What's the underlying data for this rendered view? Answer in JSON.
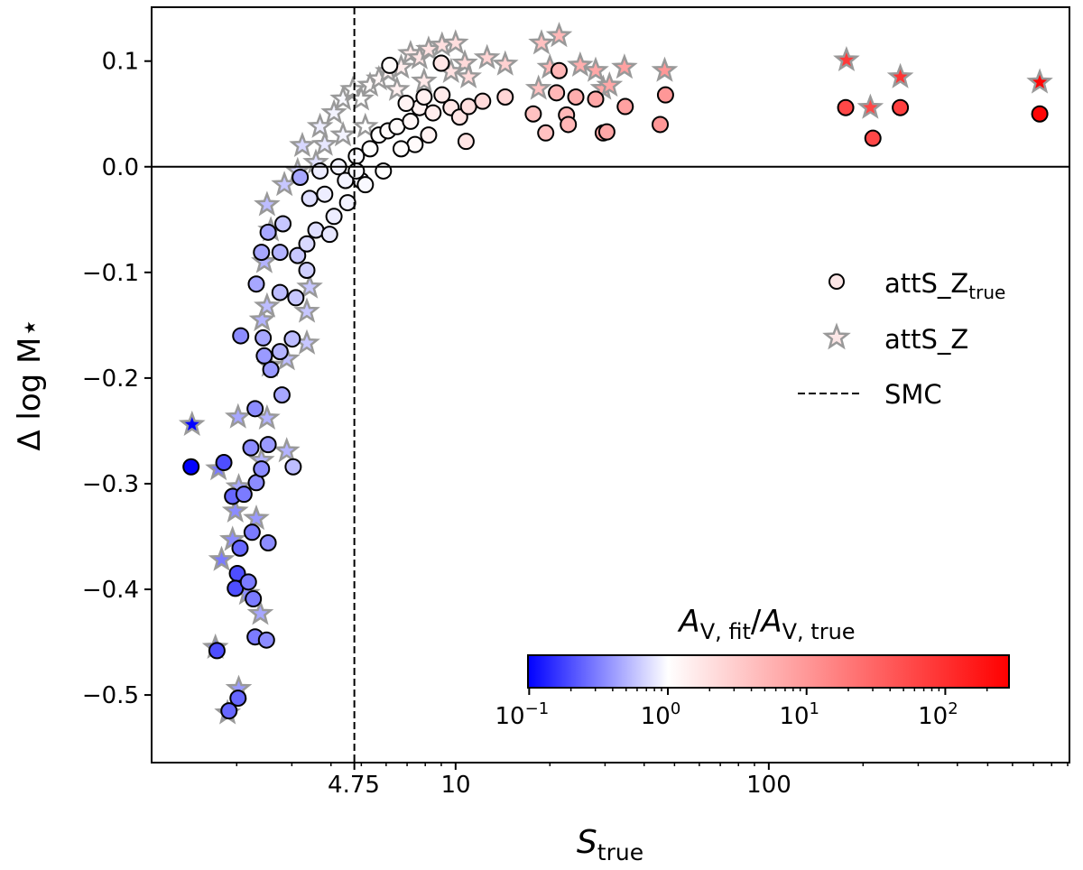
{
  "chart_data": {
    "type": "scatter",
    "xlabel": "S",
    "xlabel_sub": "true",
    "ylabel": "Δ log M⋆",
    "x_scale": "log",
    "xlim": [
      1.07,
      912
    ],
    "ylim": [
      -0.564,
      0.151
    ],
    "x_ticks": [
      {
        "value": 4.75,
        "label": "4.75"
      },
      {
        "value": 10,
        "label": "10"
      },
      {
        "value": 100,
        "label": "100"
      }
    ],
    "y_ticks": [
      {
        "value": -0.5,
        "label": "−0.5"
      },
      {
        "value": -0.4,
        "label": "−0.4"
      },
      {
        "value": -0.3,
        "label": "−0.3"
      },
      {
        "value": -0.2,
        "label": "−0.2"
      },
      {
        "value": -0.1,
        "label": "−0.1"
      },
      {
        "value": 0.0,
        "label": "0.0"
      },
      {
        "value": 0.1,
        "label": "0.1"
      }
    ],
    "grid": false,
    "reference_lines": [
      {
        "orientation": "horizontal",
        "value": 0.0,
        "style": "solid"
      },
      {
        "orientation": "vertical",
        "value": 4.75,
        "style": "dashed",
        "name": "SMC"
      }
    ],
    "legend": {
      "placement": "right",
      "entries": [
        {
          "label": "attS_Z",
          "label_sub": "true",
          "marker": "circle"
        },
        {
          "label": "attS_Z",
          "marker": "star"
        },
        {
          "label": "SMC",
          "marker": "dashed-line"
        }
      ]
    },
    "colorbar": {
      "label": "A",
      "label_parts": [
        "A",
        "V, fit",
        "/",
        "A",
        "V, true"
      ],
      "scale": "log",
      "range": [
        0.098,
        288
      ],
      "center": 1,
      "colormap": "bwr",
      "colors": {
        "low": "#0000ff",
        "center": "#ffffff",
        "high": "#ff0000"
      },
      "ticks": [
        {
          "value": 0.1,
          "base": "10",
          "exp": "−1"
        },
        {
          "value": 1,
          "base": "10",
          "exp": "0"
        },
        {
          "value": 10,
          "base": "10",
          "exp": "1"
        },
        {
          "value": 100,
          "base": "10",
          "exp": "2"
        }
      ]
    },
    "columns": [
      "S_true",
      "delta_log_M",
      "Av_ratio"
    ],
    "series": [
      {
        "name": "attS_Z_true",
        "marker": "circle",
        "edge_color": "#000000",
        "points": [
          [
            1.43,
            -0.284,
            0.1
          ],
          [
            1.82,
            -0.28,
            0.2
          ],
          [
            1.73,
            -0.458,
            0.2
          ],
          [
            1.89,
            -0.515,
            0.25
          ],
          [
            2.02,
            -0.503,
            0.25
          ],
          [
            1.94,
            -0.312,
            0.25
          ],
          [
            2.05,
            -0.361,
            0.25
          ],
          [
            2.01,
            -0.385,
            0.2
          ],
          [
            1.98,
            -0.399,
            0.2
          ],
          [
            2.18,
            -0.393,
            0.3
          ],
          [
            2.26,
            -0.409,
            0.3
          ],
          [
            2.29,
            -0.445,
            0.3
          ],
          [
            2.49,
            -0.448,
            0.35
          ],
          [
            2.52,
            -0.356,
            0.35
          ],
          [
            2.24,
            -0.346,
            0.3
          ],
          [
            2.11,
            -0.31,
            0.3
          ],
          [
            2.31,
            -0.299,
            0.35
          ],
          [
            2.4,
            -0.286,
            0.35
          ],
          [
            2.22,
            -0.266,
            0.35
          ],
          [
            2.52,
            -0.263,
            0.4
          ],
          [
            2.29,
            -0.229,
            0.35
          ],
          [
            2.79,
            -0.216,
            0.45
          ],
          [
            2.57,
            -0.192,
            0.4
          ],
          [
            2.45,
            -0.179,
            0.4
          ],
          [
            2.06,
            -0.16,
            0.35
          ],
          [
            2.43,
            -0.162,
            0.45
          ],
          [
            3.01,
            -0.163,
            0.55
          ],
          [
            2.75,
            -0.175,
            0.5
          ],
          [
            3.03,
            -0.284,
            0.55
          ],
          [
            2.75,
            -0.081,
            0.5
          ],
          [
            3.13,
            -0.084,
            0.6
          ],
          [
            2.4,
            -0.081,
            0.45
          ],
          [
            2.75,
            -0.119,
            0.55
          ],
          [
            2.31,
            -0.111,
            0.45
          ],
          [
            3.09,
            -0.124,
            0.6
          ],
          [
            3.35,
            -0.098,
            0.65
          ],
          [
            2.81,
            -0.054,
            0.6
          ],
          [
            3.35,
            -0.073,
            0.7
          ],
          [
            3.58,
            -0.06,
            0.75
          ],
          [
            3.42,
            -0.03,
            0.75
          ],
          [
            3.82,
            -0.026,
            0.85
          ],
          [
            3.69,
            -0.004,
            0.85
          ],
          [
            4.23,
            0.0,
            0.9
          ],
          [
            4.45,
            -0.013,
            0.9
          ],
          [
            4.09,
            -0.047,
            0.85
          ],
          [
            4.82,
            0.01,
            0.95
          ],
          [
            4.99,
            -0.013,
            0.95
          ],
          [
            5.33,
            0.017,
            1.0
          ],
          [
            5.69,
            0.03,
            1.0
          ],
          [
            6.08,
            0.034,
            1.1
          ],
          [
            5.88,
            -0.004,
            1.0
          ],
          [
            6.5,
            0.038,
            1.1
          ],
          [
            7.18,
            0.043,
            1.2
          ],
          [
            7.67,
            0.056,
            1.3
          ],
          [
            7.93,
            0.066,
            1.4
          ],
          [
            8.47,
            0.051,
            1.5
          ],
          [
            9.05,
            0.068,
            1.6
          ],
          [
            9.67,
            0.056,
            1.7
          ],
          [
            10.3,
            0.047,
            1.8
          ],
          [
            10.8,
            0.024,
            1.8
          ],
          [
            11.0,
            0.057,
            2.0
          ],
          [
            12.2,
            0.062,
            2.2
          ],
          [
            14.4,
            0.066,
            2.5
          ],
          [
            6.16,
            0.096,
            1.1
          ],
          [
            9.0,
            0.098,
            1.8
          ],
          [
            7.42,
            0.021,
            1.1
          ],
          [
            4.82,
            -0.004,
            0.95
          ],
          [
            5.15,
            -0.017,
            0.95
          ],
          [
            6.95,
            0.06,
            1.3
          ],
          [
            8.2,
            0.03,
            1.3
          ],
          [
            6.7,
            0.017,
            1.05
          ],
          [
            4.52,
            -0.034,
            0.9
          ],
          [
            3.96,
            -0.064,
            0.8
          ],
          [
            3.19,
            -0.01,
            0.45
          ],
          [
            2.52,
            -0.062,
            0.45
          ],
          [
            17.7,
            0.05,
            4
          ],
          [
            19.4,
            0.032,
            4
          ],
          [
            21.0,
            0.07,
            5
          ],
          [
            21.4,
            0.091,
            5
          ],
          [
            22.6,
            0.049,
            5
          ],
          [
            22.9,
            0.04,
            5
          ],
          [
            24.2,
            0.066,
            6
          ],
          [
            28.0,
            0.064,
            7
          ],
          [
            29.6,
            0.032,
            7
          ],
          [
            30.4,
            0.033,
            7
          ],
          [
            34.8,
            0.057,
            8
          ],
          [
            45.0,
            0.04,
            10
          ],
          [
            46.8,
            0.068,
            10
          ],
          [
            176,
            0.056,
            60
          ],
          [
            215,
            0.027,
            60
          ],
          [
            263,
            0.056,
            70
          ],
          [
            733,
            0.05,
            250
          ]
        ]
      },
      {
        "name": "attS_Z",
        "marker": "star",
        "edge_color": "#999999",
        "points": [
          [
            1.44,
            -0.244,
            0.1
          ],
          [
            1.71,
            -0.455,
            0.3
          ],
          [
            1.87,
            -0.517,
            0.35
          ],
          [
            2.03,
            -0.494,
            0.4
          ],
          [
            1.79,
            -0.372,
            0.3
          ],
          [
            1.94,
            -0.353,
            0.35
          ],
          [
            1.98,
            -0.326,
            0.35
          ],
          [
            2.31,
            -0.333,
            0.4
          ],
          [
            2.38,
            -0.423,
            0.45
          ],
          [
            2.16,
            -0.404,
            0.35
          ],
          [
            1.75,
            -0.286,
            0.3
          ],
          [
            2.03,
            -0.303,
            0.45
          ],
          [
            2.4,
            -0.278,
            0.5
          ],
          [
            2.89,
            -0.269,
            0.5
          ],
          [
            2.02,
            -0.237,
            0.45
          ],
          [
            2.5,
            -0.238,
            0.5
          ],
          [
            2.55,
            -0.188,
            0.5
          ],
          [
            2.89,
            -0.182,
            0.55
          ],
          [
            3.35,
            -0.167,
            0.6
          ],
          [
            2.41,
            -0.145,
            0.5
          ],
          [
            2.5,
            -0.132,
            0.55
          ],
          [
            3.42,
            -0.114,
            0.6
          ],
          [
            2.45,
            -0.09,
            0.5
          ],
          [
            2.57,
            -0.06,
            0.55
          ],
          [
            2.5,
            -0.036,
            0.55
          ],
          [
            2.84,
            -0.017,
            0.6
          ],
          [
            3.24,
            0.02,
            0.7
          ],
          [
            3.13,
            -0.004,
            0.65
          ],
          [
            3.82,
            0.021,
            0.8
          ],
          [
            3.69,
            0.038,
            0.85
          ],
          [
            4.09,
            0.051,
            0.9
          ],
          [
            4.37,
            0.064,
            0.95
          ],
          [
            4.7,
            0.073,
            1.0
          ],
          [
            4.99,
            0.064,
            1.0
          ],
          [
            5.33,
            0.077,
            1.1
          ],
          [
            5.69,
            0.083,
            1.2
          ],
          [
            6.08,
            0.09,
            1.3
          ],
          [
            6.7,
            0.094,
            1.5
          ],
          [
            7.18,
            0.107,
            1.6
          ],
          [
            7.67,
            0.103,
            1.8
          ],
          [
            8.2,
            0.111,
            1.9
          ],
          [
            9.05,
            0.115,
            2.0
          ],
          [
            10.0,
            0.117,
            2.1
          ],
          [
            10.7,
            0.098,
            2.3
          ],
          [
            12.6,
            0.103,
            2.6
          ],
          [
            14.4,
            0.097,
            2.8
          ],
          [
            3.58,
            0.004,
            0.75
          ],
          [
            4.37,
            0.03,
            0.9
          ],
          [
            5.15,
            0.038,
            1.0
          ],
          [
            6.5,
            0.073,
            1.4
          ],
          [
            7.93,
            0.081,
            1.6
          ],
          [
            9.67,
            0.09,
            1.9
          ],
          [
            11.0,
            0.085,
            2.2
          ],
          [
            3.35,
            -0.137,
            0.6
          ],
          [
            18.4,
            0.074,
            4
          ],
          [
            18.8,
            0.117,
            4
          ],
          [
            21.4,
            0.124,
            5
          ],
          [
            20.0,
            0.094,
            5
          ],
          [
            28.0,
            0.091,
            7
          ],
          [
            29.6,
            0.074,
            7
          ],
          [
            34.6,
            0.094,
            8
          ],
          [
            46.5,
            0.091,
            10
          ],
          [
            177,
            0.101,
            80
          ],
          [
            211,
            0.056,
            60
          ],
          [
            263,
            0.085,
            90
          ],
          [
            733,
            0.08,
            250
          ],
          [
            25.0,
            0.096,
            6
          ],
          [
            31.0,
            0.077,
            7
          ]
        ]
      }
    ]
  }
}
